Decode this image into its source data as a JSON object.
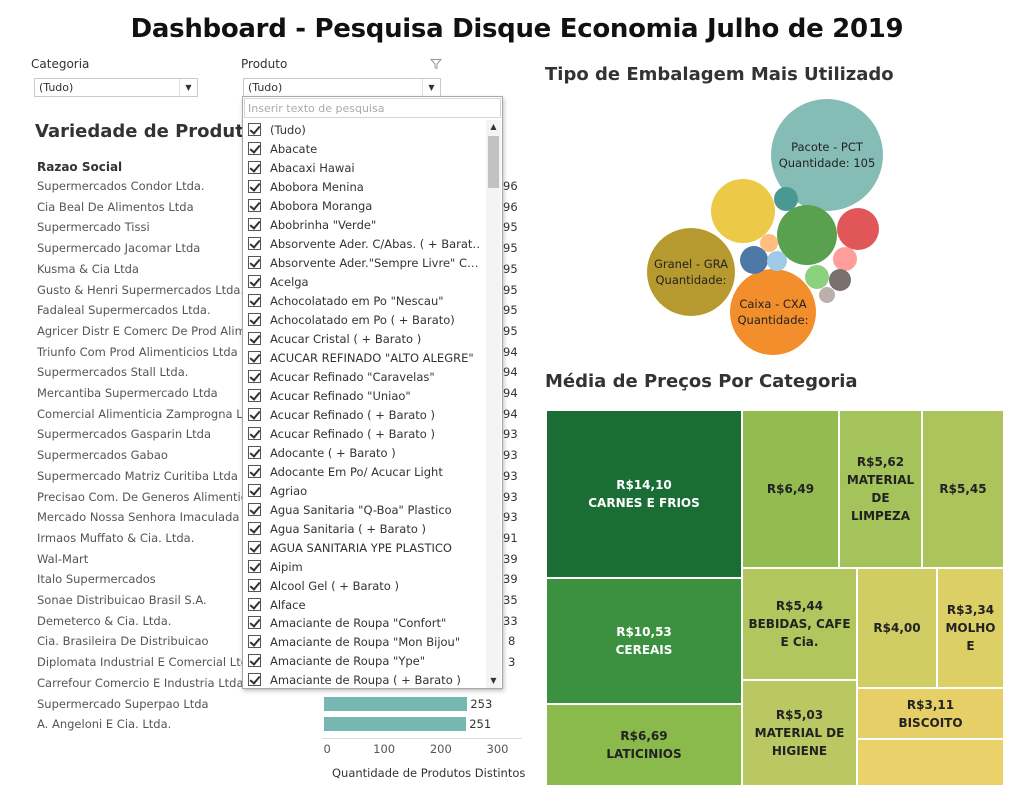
{
  "dashboard_title": "Dashboard - Pesquisa Disque Economia Julho de 2019",
  "filters": {
    "categoria": {
      "label": "Categoria",
      "value": "(Tudo)"
    },
    "produto": {
      "label": "Produto",
      "value": "(Tudo)"
    }
  },
  "dropdown": {
    "search_placeholder": "Inserir texto de pesquisa",
    "items": [
      "(Tudo)",
      "Abacate",
      "Abacaxi Hawai",
      "Abobora Menina",
      "Abobora Moranga",
      "Abobrinha \"Verde\"",
      "Absorvente Ader. C/Abas. ( + Barat…",
      "Absorvente Ader.\"Sempre Livre\" C…",
      "Acelga",
      "Achocolatado em Po \"Nescau\"",
      "Achocolatado em Po ( + Barato)",
      "Acucar Cristal  ( + Barato )",
      "ACUCAR REFINADO \"ALTO ALEGRE\"",
      "Acucar Refinado \"Caravelas\"",
      "Acucar Refinado \"Uniao\"",
      "Acucar Refinado  ( + Barato )",
      "Acucar Refinado  ( + Barato )",
      "Adocante  ( + Barato )",
      "Adocante Em Po/ Acucar Light",
      "Agriao",
      "Agua Sanitaria  \"Q-Boa\"  Plastico",
      "Agua Sanitaria  ( + Barato )",
      "AGUA SANITARIA  YPE PLASTICO",
      "Aipim",
      "Alcool Gel  ( + Barato )",
      "Alface",
      "Amaciante de Roupa \"Confort\"",
      "Amaciante de Roupa \"Mon Bijou\"",
      "Amaciante de Roupa \"Ype\"",
      "Amaciante de Roupa  ( + Barato )"
    ]
  },
  "variedade": {
    "title": "Variedade de Produtos",
    "column_header": "Razao Social",
    "rows": [
      {
        "name": "Supermercados Condor Ltda.",
        "value_fragment": "96"
      },
      {
        "name": "Cia Beal De Alimentos Ltda",
        "value_fragment": "96"
      },
      {
        "name": "Supermercado Tissi",
        "value_fragment": "95"
      },
      {
        "name": "Supermercado Jacomar Ltda",
        "value_fragment": "95"
      },
      {
        "name": "Kusma & Cia Ltda",
        "value_fragment": "95"
      },
      {
        "name": "Gusto & Henri Supermercados Ltda.",
        "value_fragment": "95"
      },
      {
        "name": "Fadaleal Supermercados Ltda.",
        "value_fragment": "95"
      },
      {
        "name": "Agricer Distr E Comerc De Prod Alimen",
        "value_fragment": "95"
      },
      {
        "name": "Triunfo Com Prod Alimenticios Ltda",
        "value_fragment": "94"
      },
      {
        "name": "Supermercados Stall Ltda.",
        "value_fragment": "94"
      },
      {
        "name": "Mercantiba Supermercado Ltda",
        "value_fragment": "94"
      },
      {
        "name": "Comercial Alimenticia Zamprogna Ltda",
        "value_fragment": "94"
      },
      {
        "name": "Supermercados Gasparin Ltda",
        "value_fragment": "93"
      },
      {
        "name": "Supermercados Gabao",
        "value_fragment": "93"
      },
      {
        "name": "Supermercado Matriz Curitiba Ltda",
        "value_fragment": "93"
      },
      {
        "name": "Precisao Com. De Generos Alimenticios",
        "value_fragment": "93"
      },
      {
        "name": "Mercado Nossa Senhora Imaculada C",
        "value_fragment": "93"
      },
      {
        "name": "Irmaos Muffato & Cia. Ltda.",
        "value_fragment": "91"
      },
      {
        "name": "Wal-Mart",
        "value_fragment": "39"
      },
      {
        "name": "Italo Supermercados",
        "value_fragment": "39"
      },
      {
        "name": "Sonae Distribuicao Brasil S.A.",
        "value_fragment": "35"
      },
      {
        "name": "Demeterco & Cia. Ltda.",
        "value_fragment": "33"
      },
      {
        "name": "Cia. Brasileira De Distribuicao",
        "value_fragment": "8"
      },
      {
        "name": "Diplomata Industrial E Comercial Ltda",
        "value_fragment": "3"
      },
      {
        "name": "Carrefour Comercio E Industria Ltda.",
        "value_fragment": ""
      },
      {
        "name": "Supermercado Superpao Ltda",
        "value": 253
      },
      {
        "name": "A. Angeloni E Cia. Ltda.",
        "value": 251
      }
    ],
    "axis": {
      "title": "Quantidade de Produtos Distintos",
      "ticks": [
        "0",
        "100",
        "200",
        "300"
      ],
      "max": 300
    },
    "bar_color": "#76b7b2"
  },
  "embalagem": {
    "title": "Tipo de Embalagem Mais Utilizado",
    "bubbles": [
      {
        "label": "Pacote - PCT",
        "sublabel": "Quantidade: 105",
        "value": 105,
        "color": "#86bcb6"
      },
      {
        "label": "Granel - GRA",
        "sublabel": "Quantidade:",
        "color": "#b79a2f"
      },
      {
        "label": "Caixa - CXA",
        "sublabel": "Quantidade:",
        "color": "#f28e2b"
      },
      {
        "label": "",
        "sublabel": "",
        "color": "#edc948"
      },
      {
        "label": "",
        "sublabel": "",
        "color": "#59a14f"
      },
      {
        "label": "",
        "sublabel": "",
        "color": "#e15759"
      },
      {
        "label": "",
        "sublabel": "",
        "color": "#4e79a7"
      },
      {
        "label": "",
        "sublabel": "",
        "color": "#499894"
      },
      {
        "label": "",
        "sublabel": "",
        "color": "#ff9d9a"
      },
      {
        "label": "",
        "sublabel": "",
        "color": "#8cd17d"
      },
      {
        "label": "",
        "sublabel": "",
        "color": "#79706e"
      },
      {
        "label": "",
        "sublabel": "",
        "color": "#a0cbe8"
      },
      {
        "label": "",
        "sublabel": "",
        "color": "#ffbe7d"
      },
      {
        "label": "",
        "sublabel": "",
        "color": "#bab0ac"
      }
    ]
  },
  "precos": {
    "title": "Média de Preços Por Categoria",
    "tiles": [
      {
        "price": "R$14,10",
        "category": [
          "CARNES E FRIOS"
        ],
        "color": "#1a6e35",
        "text_color": "#ffffff"
      },
      {
        "price": "R$10,53",
        "category": [
          "CEREAIS"
        ],
        "color": "#3c9140",
        "text_color": "#ffffff"
      },
      {
        "price": "R$6,69",
        "category": [
          "LATICINIOS"
        ],
        "color": "#8aba4c",
        "text_color": "#222222"
      },
      {
        "price": "R$6,49",
        "category": [],
        "color": "#92bb50",
        "text_color": "#222222"
      },
      {
        "price": "R$5,62",
        "category": [
          "MATERIAL",
          "DE",
          "LIMPEZA"
        ],
        "color": "#a4c35a",
        "text_color": "#222222"
      },
      {
        "price": "R$5,45",
        "category": [],
        "color": "#adc45c",
        "text_color": "#222222"
      },
      {
        "price": "R$5,44",
        "category": [
          "BEBIDAS, CAFE",
          "E Cia."
        ],
        "color": "#b2c65e",
        "text_color": "#222222"
      },
      {
        "price": "R$5,03",
        "category": [
          "MATERIAL DE",
          "HIGIENE"
        ],
        "color": "#b9c862",
        "text_color": "#222222"
      },
      {
        "price": "R$4,00",
        "category": [],
        "color": "#cfcd63",
        "text_color": "#222222"
      },
      {
        "price": "R$3,34",
        "category": [
          "MOLHO",
          "E"
        ],
        "color": "#dccf65",
        "text_color": "#222222"
      },
      {
        "price": "R$3,11",
        "category": [
          "BISCOITO"
        ],
        "color": "#e6cf67",
        "text_color": "#222222"
      },
      {
        "price": "",
        "category": [],
        "color": "#ebd16a",
        "text_color": "#222222"
      }
    ]
  }
}
